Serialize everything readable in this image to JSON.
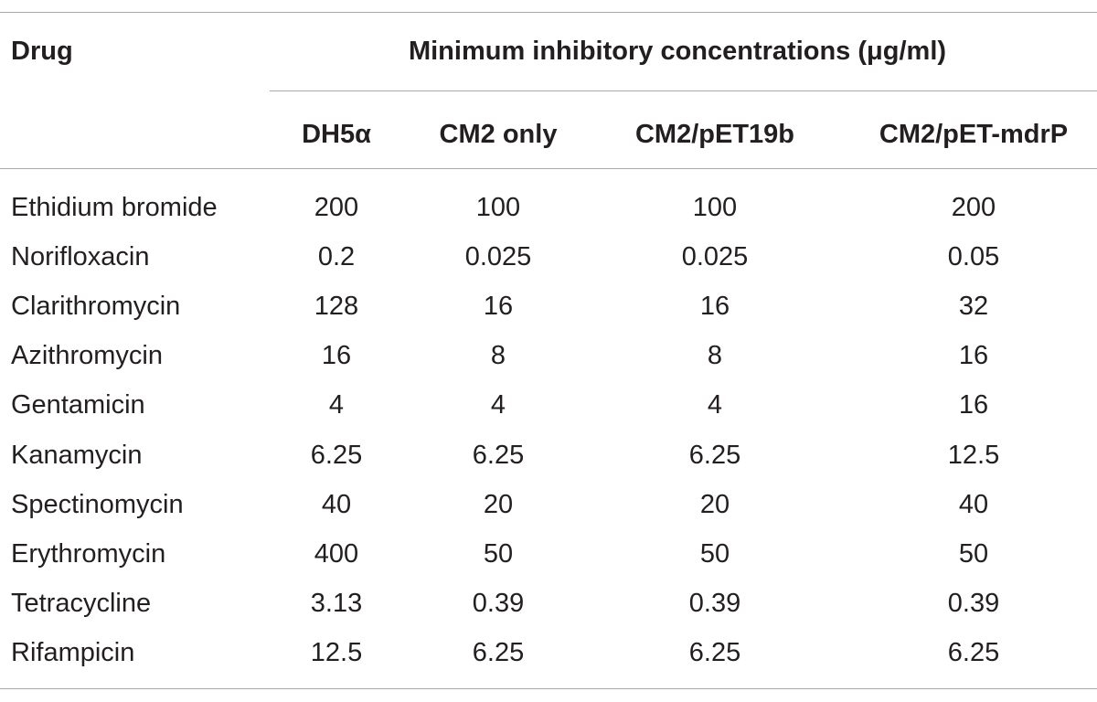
{
  "table": {
    "header": {
      "drug": "Drug",
      "span_label": "Minimum inhibitory concentrations (μg/ml)",
      "columns": [
        "DH5α",
        "CM2 only",
        "CM2/pET19b",
        "CM2/pET-mdrP"
      ]
    },
    "rows": [
      {
        "drug": "Ethidium bromide",
        "values": [
          "200",
          "100",
          "100",
          "200"
        ]
      },
      {
        "drug": "Norifloxacin",
        "values": [
          "0.2",
          "0.025",
          "0.025",
          "0.05"
        ]
      },
      {
        "drug": "Clarithromycin",
        "values": [
          "128",
          "16",
          "16",
          "32"
        ]
      },
      {
        "drug": "Azithromycin",
        "values": [
          "16",
          "8",
          "8",
          "16"
        ]
      },
      {
        "drug": "Gentamicin",
        "values": [
          "4",
          "4",
          "4",
          "16"
        ]
      },
      {
        "drug": "Kanamycin",
        "values": [
          "6.25",
          "6.25",
          "6.25",
          "12.5"
        ]
      },
      {
        "drug": "Spectinomycin",
        "values": [
          "40",
          "20",
          "20",
          "40"
        ]
      },
      {
        "drug": "Erythromycin",
        "values": [
          "400",
          "50",
          "50",
          "50"
        ]
      },
      {
        "drug": "Tetracycline",
        "values": [
          "3.13",
          "0.39",
          "0.39",
          "0.39"
        ]
      },
      {
        "drug": "Rifampicin",
        "values": [
          "12.5",
          "6.25",
          "6.25",
          "6.25"
        ]
      }
    ]
  }
}
